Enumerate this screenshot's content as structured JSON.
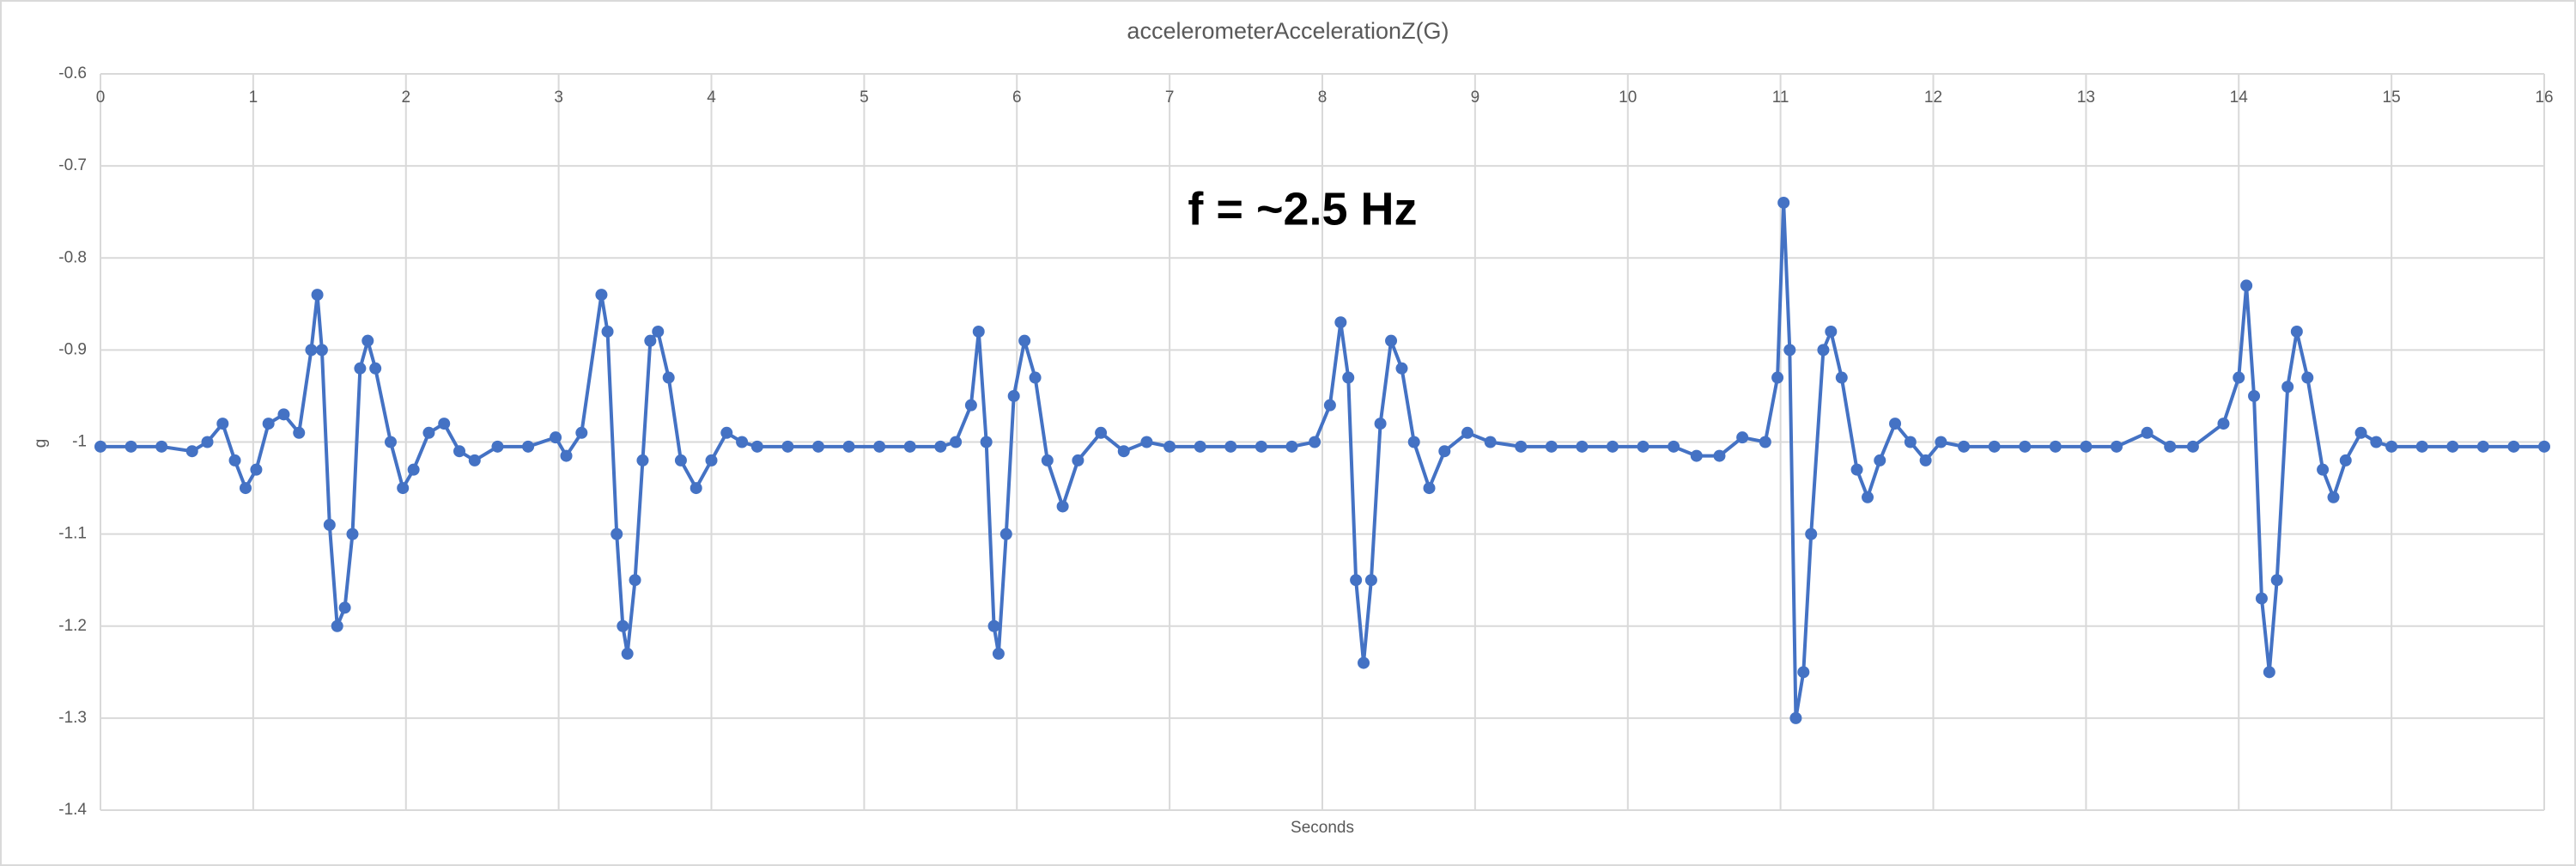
{
  "chart_data": {
    "type": "line",
    "title": "accelerometerAccelerationZ(G)",
    "annotation": "f = ~2.5 Hz",
    "x_label": "Seconds",
    "y_label": "g",
    "color": "#4472c4",
    "markers": true,
    "grid": true,
    "xlim": [
      0,
      16
    ],
    "xticks": [
      0,
      1,
      2,
      3,
      4,
      5,
      6,
      7,
      8,
      9,
      10,
      11,
      12,
      13,
      14,
      15,
      16
    ],
    "ylim": [
      -1.4,
      -0.6
    ],
    "yticks": [
      -0.6,
      -0.7,
      -0.8,
      -0.9,
      -1,
      -1.1,
      -1.2,
      -1.3,
      -1.4
    ],
    "x": [
      0,
      0.2,
      0.4,
      0.6,
      0.7,
      0.8,
      0.88,
      0.95,
      1.02,
      1.1,
      1.2,
      1.3,
      1.38,
      1.42,
      1.45,
      1.5,
      1.55,
      1.6,
      1.65,
      1.7,
      1.75,
      1.8,
      1.9,
      1.98,
      2.05,
      2.15,
      2.25,
      2.35,
      2.45,
      2.6,
      2.8,
      2.98,
      3.05,
      3.15,
      3.28,
      3.32,
      3.38,
      3.42,
      3.45,
      3.5,
      3.55,
      3.6,
      3.65,
      3.72,
      3.8,
      3.9,
      4.0,
      4.1,
      4.2,
      4.3,
      4.5,
      4.7,
      4.9,
      5.1,
      5.3,
      5.5,
      5.6,
      5.7,
      5.75,
      5.8,
      5.85,
      5.88,
      5.93,
      5.98,
      6.05,
      6.12,
      6.2,
      6.3,
      6.4,
      6.55,
      6.7,
      6.85,
      7.0,
      7.2,
      7.4,
      7.6,
      7.8,
      7.95,
      8.05,
      8.12,
      8.17,
      8.22,
      8.27,
      8.32,
      8.38,
      8.45,
      8.52,
      8.6,
      8.7,
      8.8,
      8.95,
      9.1,
      9.3,
      9.5,
      9.7,
      9.9,
      10.1,
      10.3,
      10.45,
      10.6,
      10.75,
      10.9,
      10.98,
      11.02,
      11.06,
      11.1,
      11.15,
      11.2,
      11.28,
      11.33,
      11.4,
      11.5,
      11.57,
      11.65,
      11.75,
      11.85,
      11.95,
      12.05,
      12.2,
      12.4,
      12.6,
      12.8,
      13.0,
      13.2,
      13.4,
      13.55,
      13.7,
      13.9,
      14.0,
      14.05,
      14.1,
      14.15,
      14.2,
      14.25,
      14.32,
      14.38,
      14.45,
      14.55,
      14.62,
      14.7,
      14.8,
      14.9,
      15.0,
      15.2,
      15.4,
      15.6,
      15.8,
      16.0
    ],
    "values": [
      -1.005,
      -1.005,
      -1.005,
      -1.01,
      -1.0,
      -0.98,
      -1.02,
      -1.05,
      -1.03,
      -0.98,
      -0.97,
      -0.99,
      -0.9,
      -0.84,
      -0.9,
      -1.09,
      -1.2,
      -1.18,
      -1.1,
      -0.92,
      -0.89,
      -0.92,
      -1.0,
      -1.05,
      -1.03,
      -0.99,
      -0.98,
      -1.01,
      -1.02,
      -1.005,
      -1.005,
      -0.995,
      -1.015,
      -0.99,
      -0.84,
      -0.88,
      -1.1,
      -1.2,
      -1.23,
      -1.15,
      -1.02,
      -0.89,
      -0.88,
      -0.93,
      -1.02,
      -1.05,
      -1.02,
      -0.99,
      -1.0,
      -1.005,
      -1.005,
      -1.005,
      -1.005,
      -1.005,
      -1.005,
      -1.005,
      -1.0,
      -0.96,
      -0.88,
      -1.0,
      -1.2,
      -1.23,
      -1.1,
      -0.95,
      -0.89,
      -0.93,
      -1.02,
      -1.07,
      -1.02,
      -0.99,
      -1.01,
      -1.0,
      -1.005,
      -1.005,
      -1.005,
      -1.005,
      -1.005,
      -1.0,
      -0.96,
      -0.87,
      -0.93,
      -1.15,
      -1.24,
      -1.15,
      -0.98,
      -0.89,
      -0.92,
      -1.0,
      -1.05,
      -1.01,
      -0.99,
      -1.0,
      -1.005,
      -1.005,
      -1.005,
      -1.005,
      -1.005,
      -1.005,
      -1.015,
      -1.015,
      -0.995,
      -1.0,
      -0.93,
      -0.74,
      -0.9,
      -1.3,
      -1.25,
      -1.1,
      -0.9,
      -0.88,
      -0.93,
      -1.03,
      -1.06,
      -1.02,
      -0.98,
      -1.0,
      -1.02,
      -1.0,
      -1.005,
      -1.005,
      -1.005,
      -1.005,
      -1.005,
      -1.005,
      -0.99,
      -1.005,
      -1.005,
      -0.98,
      -0.93,
      -0.83,
      -0.95,
      -1.17,
      -1.25,
      -1.15,
      -0.94,
      -0.88,
      -0.93,
      -1.03,
      -1.06,
      -1.02,
      -0.99,
      -1.0,
      -1.005,
      -1.005,
      -1.005,
      -1.005,
      -1.005,
      -1.005
    ]
  }
}
